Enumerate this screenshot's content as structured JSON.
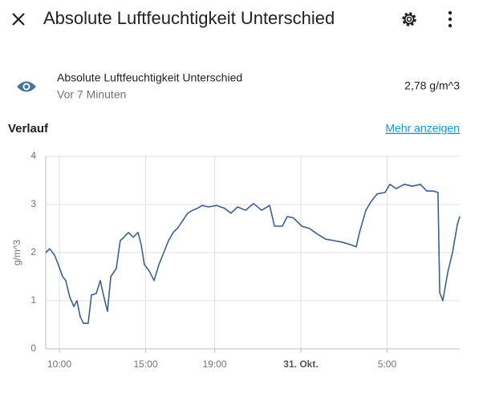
{
  "header": {
    "title": "Absolute Luftfeuchtigkeit Unterschied"
  },
  "entity": {
    "name": "Absolute Luftfeuchtigkeit Unterschied",
    "time": "Vor 7 Minuten",
    "state": "2,78 g/m^3"
  },
  "section": {
    "title": "Verlauf",
    "link": "Mehr anzeigen"
  },
  "chart_data": {
    "type": "line",
    "ylabel": "g/m^3",
    "color": "#3b5f8f",
    "grid": true,
    "xlim": [
      9.21,
      33.21
    ],
    "ylim": [
      0,
      4
    ],
    "xticks": [
      {
        "value": 10,
        "label": "10:00"
      },
      {
        "value": 15,
        "label": "15:00"
      },
      {
        "value": 19,
        "label": "19:00"
      },
      {
        "value": 24,
        "label": "31. Okt.",
        "bold": true
      },
      {
        "value": 29,
        "label": "5:00"
      }
    ],
    "yticks": [
      0,
      1,
      2,
      3,
      4
    ],
    "x": [
      9.21,
      9.44,
      9.72,
      9.91,
      10.19,
      10.37,
      10.6,
      10.84,
      11.02,
      11.21,
      11.4,
      11.67,
      11.86,
      12.14,
      12.37,
      12.6,
      12.79,
      12.98,
      13.3,
      13.53,
      13.77,
      14.0,
      14.28,
      14.56,
      14.74,
      14.93,
      15.21,
      15.49,
      15.77,
      16.05,
      16.33,
      16.6,
      16.88,
      17.16,
      17.44,
      17.72,
      18.0,
      18.28,
      18.65,
      19.12,
      19.58,
      19.95,
      20.33,
      20.79,
      21.26,
      21.72,
      22.19,
      22.47,
      22.93,
      23.21,
      23.58,
      24.05,
      24.51,
      24.98,
      25.44,
      25.91,
      26.37,
      26.84,
      27.21,
      27.4,
      27.77,
      28.05,
      28.42,
      28.88,
      29.16,
      29.53,
      30.0,
      30.47,
      30.93,
      31.3,
      31.67,
      31.95,
      32.05,
      32.23,
      32.51,
      32.79,
      33.07,
      33.21
    ],
    "values": [
      2.0,
      2.08,
      1.95,
      1.78,
      1.5,
      1.42,
      1.08,
      0.88,
      1.0,
      0.67,
      0.53,
      0.53,
      1.12,
      1.15,
      1.42,
      1.05,
      0.78,
      1.5,
      1.67,
      2.25,
      2.33,
      2.42,
      2.32,
      2.42,
      2.17,
      1.75,
      1.62,
      1.42,
      1.75,
      2.0,
      2.25,
      2.42,
      2.52,
      2.67,
      2.82,
      2.88,
      2.92,
      2.98,
      2.95,
      2.98,
      2.92,
      2.82,
      2.95,
      2.88,
      3.02,
      2.88,
      2.98,
      2.55,
      2.55,
      2.75,
      2.72,
      2.55,
      2.5,
      2.38,
      2.28,
      2.25,
      2.22,
      2.17,
      2.12,
      2.42,
      2.88,
      3.05,
      3.22,
      3.25,
      3.42,
      3.33,
      3.42,
      3.38,
      3.42,
      3.28,
      3.28,
      3.25,
      1.17,
      1.0,
      1.58,
      2.0,
      2.58,
      2.75
    ]
  }
}
